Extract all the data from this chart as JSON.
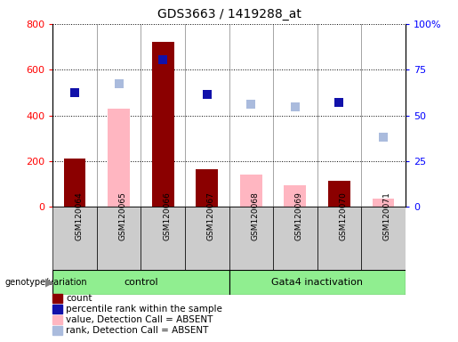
{
  "title": "GDS3663 / 1419288_at",
  "samples": [
    "GSM120064",
    "GSM120065",
    "GSM120066",
    "GSM120067",
    "GSM120068",
    "GSM120069",
    "GSM120070",
    "GSM120071"
  ],
  "count": [
    210,
    null,
    720,
    165,
    null,
    null,
    115,
    null
  ],
  "percentile_rank": [
    500,
    null,
    645,
    492,
    null,
    null,
    456,
    null
  ],
  "value_absent": [
    null,
    430,
    null,
    null,
    140,
    95,
    null,
    35
  ],
  "rank_absent": [
    null,
    540,
    null,
    null,
    450,
    438,
    null,
    305
  ],
  "ylim_left": [
    0,
    800
  ],
  "yticks_left": [
    0,
    200,
    400,
    600,
    800
  ],
  "ytick_right_labels": [
    "0",
    "25",
    "50",
    "75",
    "100%"
  ],
  "yticks_right": [
    0,
    25,
    50,
    75,
    100
  ],
  "color_count": "#8B0000",
  "color_percentile": "#1111AA",
  "color_value_absent": "#FFB6C1",
  "color_rank_absent": "#AABBDD",
  "bar_width": 0.5,
  "group_bg_color": "#90EE90",
  "marker_size": 7,
  "control_label": "control",
  "gata_label": "Gata4 inactivation",
  "legend_items": [
    [
      "count",
      "#8B0000"
    ],
    [
      "percentile rank within the sample",
      "#1111AA"
    ],
    [
      "value, Detection Call = ABSENT",
      "#FFB6C1"
    ],
    [
      "rank, Detection Call = ABSENT",
      "#AABBDD"
    ]
  ]
}
